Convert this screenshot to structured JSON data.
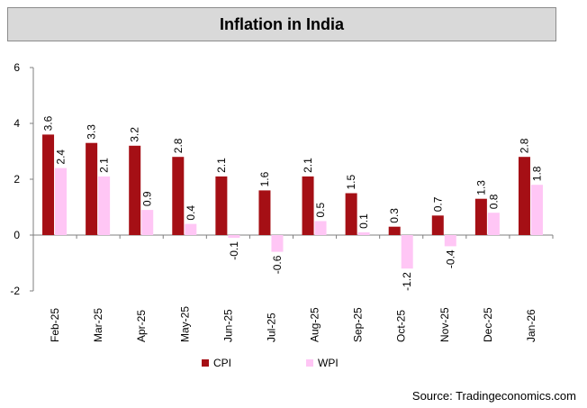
{
  "title": "Inflation in India",
  "source": "Source: Tradingeconomics.com",
  "colors": {
    "cpi": "#a50f15",
    "wpi": "#ffc6f5",
    "axis": "#7f7f7f"
  },
  "chart_data": {
    "type": "bar",
    "title": "Inflation in India",
    "xlabel": "",
    "ylabel": "",
    "ylim": [
      -2,
      6
    ],
    "yticks": [
      6,
      4,
      2,
      0,
      -2
    ],
    "grid": false,
    "legend_position": "bottom",
    "categories": [
      "Feb-25",
      "Mar-25",
      "Apr-25",
      "May-25",
      "Jun-25",
      "Jul-25",
      "Aug-25",
      "Sep-25",
      "Oct-25",
      "Nov-25",
      "Dec-25",
      "Jan-26"
    ],
    "series": [
      {
        "name": "CPI",
        "values": [
          3.6,
          3.3,
          3.2,
          2.8,
          2.1,
          1.6,
          2.1,
          1.5,
          0.3,
          0.7,
          1.3,
          2.8
        ]
      },
      {
        "name": "WPI",
        "values": [
          2.4,
          2.1,
          0.9,
          0.4,
          -0.1,
          -0.6,
          0.5,
          0.1,
          -1.2,
          -0.4,
          0.8,
          1.8
        ]
      }
    ]
  }
}
